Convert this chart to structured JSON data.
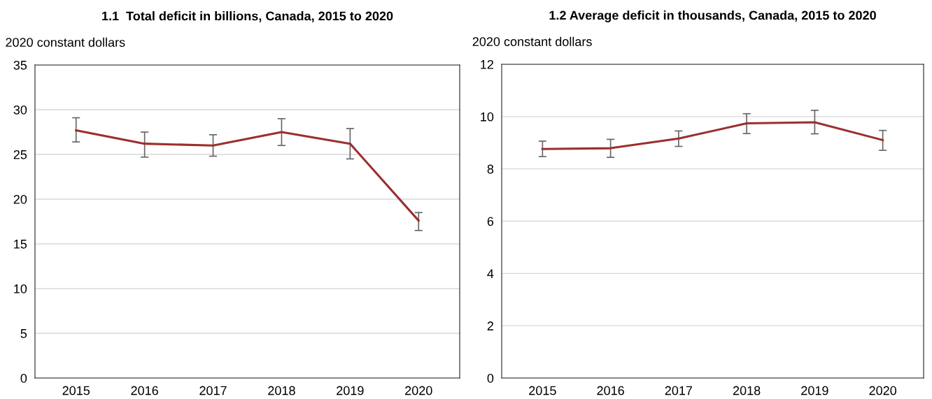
{
  "chart_data": [
    {
      "type": "line",
      "title": "1.1  Total deficit in billions, Canada, 2015 to 2020",
      "ylabel": "2020 constant dollars",
      "categories": [
        "2015",
        "2016",
        "2017",
        "2018",
        "2019",
        "2020"
      ],
      "series": [
        {
          "color": "#9b2f2f",
          "values": [
            27.7,
            26.2,
            26.0,
            27.5,
            26.2,
            17.6
          ],
          "errors": [
            [
              26.4,
              29.1
            ],
            [
              24.7,
              27.5
            ],
            [
              24.8,
              27.2
            ],
            [
              26.0,
              29.0
            ],
            [
              24.5,
              27.9
            ],
            [
              16.5,
              18.5
            ]
          ]
        }
      ],
      "ylim": [
        0,
        35
      ],
      "yticks": [
        0,
        5,
        10,
        15,
        20,
        25,
        30,
        35
      ],
      "grid": "y",
      "legend": false,
      "marker": "none",
      "line_style": "solid"
    },
    {
      "type": "line",
      "title": "1.2 Average deficit in thousands, Canada, 2015 to 2020",
      "ylabel": "2020 constant dollars",
      "categories": [
        "2015",
        "2016",
        "2017",
        "2018",
        "2019",
        "2020"
      ],
      "series": [
        {
          "color": "#9b2f2f",
          "values": [
            8.76,
            8.79,
            9.16,
            9.74,
            9.78,
            9.1
          ],
          "errors": [
            [
              8.47,
              9.06
            ],
            [
              8.44,
              9.13
            ],
            [
              8.86,
              9.45
            ],
            [
              9.35,
              10.11
            ],
            [
              9.34,
              10.24
            ],
            [
              8.71,
              9.47
            ]
          ]
        }
      ],
      "ylim": [
        0,
        12
      ],
      "yticks": [
        0,
        2,
        4,
        6,
        8,
        10,
        12
      ],
      "grid": "y",
      "legend": false,
      "marker": "none",
      "line_style": "solid"
    }
  ]
}
